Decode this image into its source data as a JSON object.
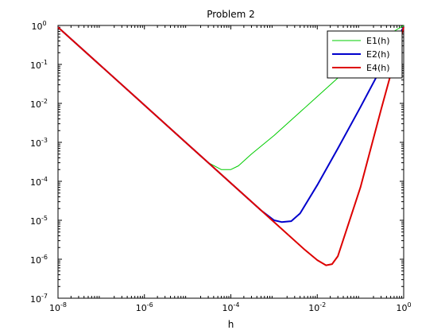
{
  "chart_data": {
    "type": "line",
    "title": "Problem 2",
    "xlabel": "h",
    "ylabel": "",
    "xscale": "log",
    "yscale": "log",
    "xlim": [
      1e-08,
      1
    ],
    "ylim": [
      1e-07,
      1
    ],
    "grid": false,
    "legend_position": "top-right",
    "x_ticks": [
      {
        "value": 1e-08,
        "base": "10",
        "exp": "-8"
      },
      {
        "value": 1e-06,
        "base": "10",
        "exp": "-6"
      },
      {
        "value": 0.0001,
        "base": "10",
        "exp": "-4"
      },
      {
        "value": 0.01,
        "base": "10",
        "exp": "-2"
      },
      {
        "value": 1,
        "base": "10",
        "exp": "0"
      }
    ],
    "y_ticks": [
      {
        "value": 1e-07,
        "base": "10",
        "exp": "-7"
      },
      {
        "value": 1e-06,
        "base": "10",
        "exp": "-6"
      },
      {
        "value": 1e-05,
        "base": "10",
        "exp": "-5"
      },
      {
        "value": 0.0001,
        "base": "10",
        "exp": "-4"
      },
      {
        "value": 0.001,
        "base": "10",
        "exp": "-3"
      },
      {
        "value": 0.01,
        "base": "10",
        "exp": "-2"
      },
      {
        "value": 0.1,
        "base": "10",
        "exp": "-1"
      },
      {
        "value": 1,
        "base": "10",
        "exp": "0"
      }
    ],
    "series": [
      {
        "name": "E1(h)",
        "color": "#00cc00",
        "x": [
          1e-08,
          1e-07,
          1e-06,
          1e-05,
          3e-05,
          6e-05,
          0.0001,
          0.00015,
          0.0003,
          0.001,
          0.01,
          0.1,
          0.3,
          1
        ],
        "y": [
          0.9,
          0.09,
          0.009,
          0.0009,
          0.0003,
          0.0002,
          0.0002,
          0.00025,
          0.0005,
          0.0015,
          0.015,
          0.15,
          0.45,
          1.0
        ]
      },
      {
        "name": "E2(h)",
        "color": "#0000cc",
        "x": [
          1e-08,
          1e-07,
          1e-06,
          1e-05,
          0.0001,
          0.0005,
          0.001,
          0.0015,
          0.0025,
          0.004,
          0.01,
          0.03,
          0.1,
          0.3,
          1
        ],
        "y": [
          0.9,
          0.09,
          0.009,
          0.0009,
          9e-05,
          1.8e-05,
          1e-05,
          9e-06,
          9.5e-06,
          1.5e-05,
          8e-05,
          0.0007,
          0.008,
          0.08,
          0.9
        ]
      },
      {
        "name": "E4(h)",
        "color": "#dd0000",
        "x": [
          1e-08,
          1e-07,
          1e-06,
          1e-05,
          0.0001,
          0.001,
          0.005,
          0.01,
          0.016,
          0.022,
          0.03,
          0.1,
          0.3,
          1
        ],
        "y": [
          0.9,
          0.09,
          0.009,
          0.0009,
          9e-05,
          9e-06,
          1.8e-06,
          9.5e-07,
          7e-07,
          7.5e-07,
          1.2e-06,
          7e-05,
          0.007,
          0.9
        ]
      }
    ]
  }
}
